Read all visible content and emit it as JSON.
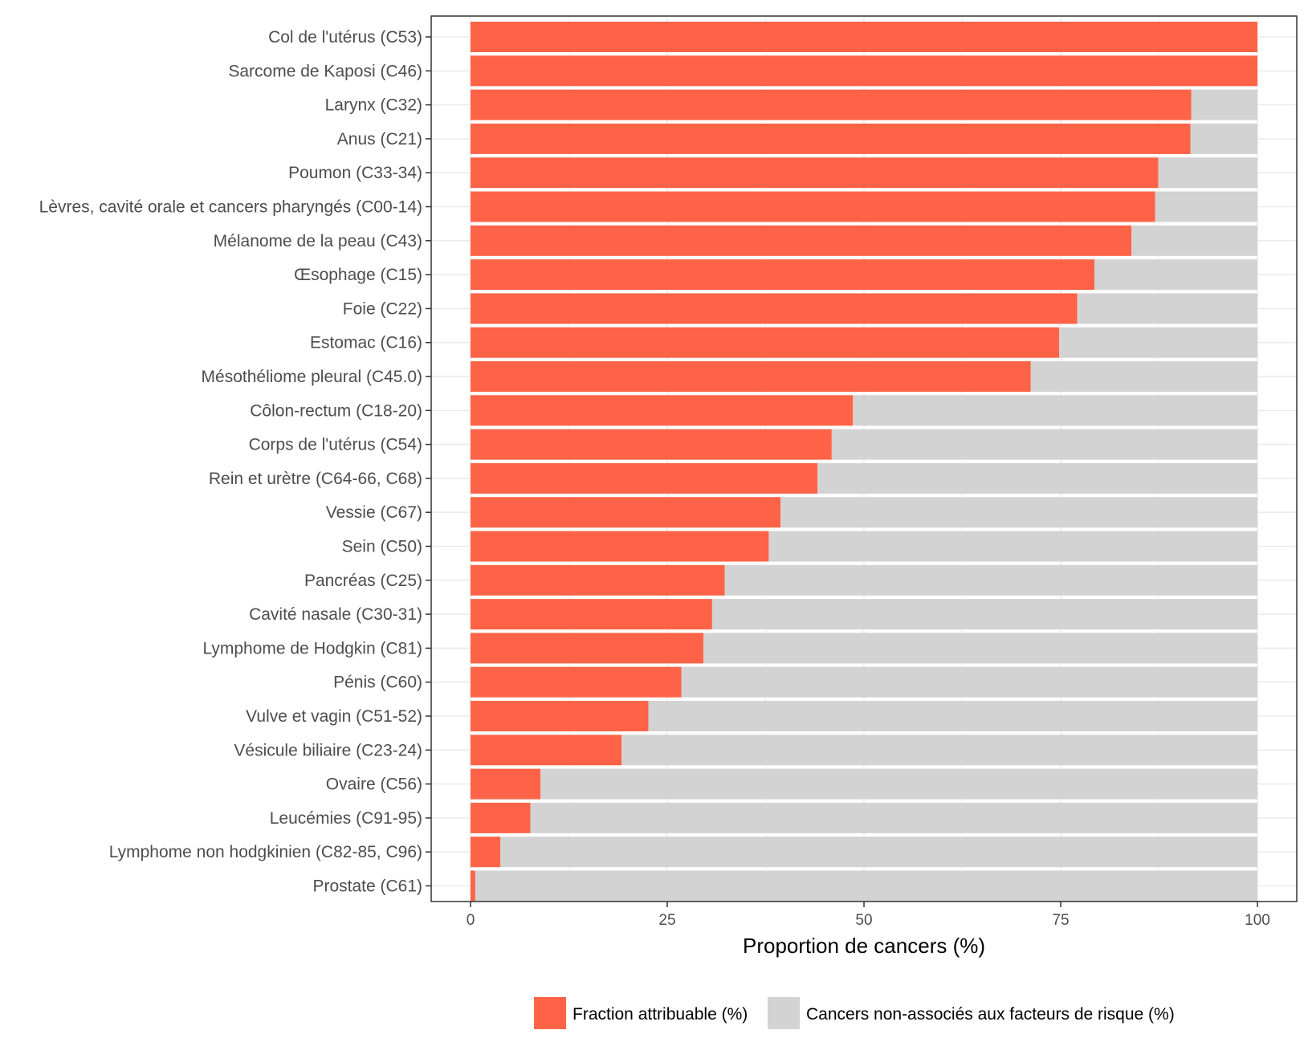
{
  "chart_data": {
    "type": "bar",
    "orientation": "horizontal",
    "stacked": true,
    "categories": [
      "Col de l'utérus (C53)",
      "Sarcome de Kaposi (C46)",
      "Larynx (C32)",
      "Anus (C21)",
      "Poumon (C33-34)",
      "Lèvres, cavité orale et cancers pharyngés (C00-14)",
      "Mélanome de la peau (C43)",
      "Œsophage (C15)",
      "Foie (C22)",
      "Estomac (C16)",
      "Mésothéliome pleural (C45.0)",
      "Côlon-rectum (C18-20)",
      "Corps de l'utérus (C54)",
      "Rein et urètre (C64-66, C68)",
      "Vessie (C67)",
      "Sein (C50)",
      "Pancréas (C25)",
      "Cavité nasale (C30-31)",
      "Lymphome de Hodgkin (C81)",
      "Pénis (C60)",
      "Vulve et vagin (C51-52)",
      "Vésicule biliaire (C23-24)",
      "Ovaire (C56)",
      "Leucémies (C91-95)",
      "Lymphome non hodgkinien (C82-85, C96)",
      "Prostate (C61)"
    ],
    "series": [
      {
        "name": "Fraction attribuable (%)",
        "color": "#ff6347",
        "values": [
          100,
          100,
          91.6,
          91.5,
          87.4,
          87.0,
          84.0,
          79.3,
          77.1,
          74.8,
          71.2,
          48.6,
          45.9,
          44.1,
          39.4,
          37.9,
          32.3,
          30.7,
          29.6,
          26.8,
          22.6,
          19.2,
          8.9,
          7.6,
          3.8,
          0.6
        ]
      },
      {
        "name": "Cancers non-associés aux facteurs de risque (%)",
        "color": "#d3d3d3",
        "values": [
          0,
          0,
          8.4,
          8.5,
          12.6,
          13.0,
          16.0,
          20.7,
          22.9,
          25.2,
          28.8,
          51.4,
          54.1,
          55.9,
          60.6,
          62.1,
          67.7,
          69.3,
          70.4,
          73.2,
          77.4,
          80.8,
          91.1,
          92.4,
          96.2,
          99.4
        ]
      }
    ],
    "xlabel": "Proportion de cancers (%)",
    "ylabel": "",
    "xlim": [
      -5,
      105
    ],
    "xticks": [
      "0",
      "25",
      "50",
      "75",
      "100"
    ],
    "xtick_values": [
      0,
      25,
      50,
      75,
      100
    ],
    "grid": true,
    "legend_position": "bottom"
  }
}
